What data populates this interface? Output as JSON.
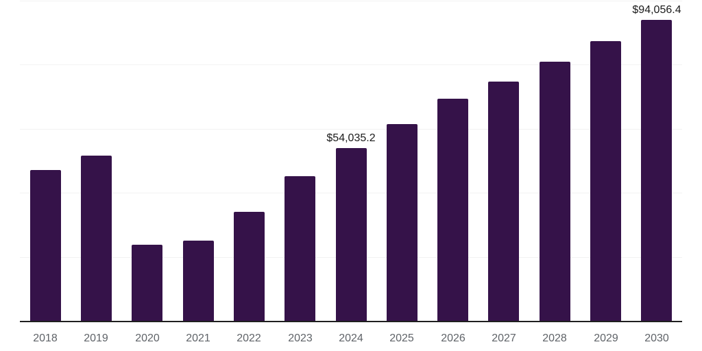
{
  "chart_data": {
    "type": "bar",
    "title": "",
    "xlabel": "",
    "ylabel": "",
    "categories": [
      "2018",
      "2019",
      "2020",
      "2021",
      "2022",
      "2023",
      "2024",
      "2025",
      "2026",
      "2027",
      "2028",
      "2029",
      "2030"
    ],
    "values": [
      47200,
      51500,
      23700,
      25000,
      34000,
      45100,
      54035.2,
      61400,
      69300,
      74800,
      81000,
      87400,
      94056.4
    ],
    "value_labels": [
      {
        "category": "2024",
        "text": "$54,035.2"
      },
      {
        "category": "2030",
        "text": "$94,056.4"
      }
    ],
    "ylim": [
      0,
      100000
    ],
    "grid_step": 20000,
    "grid": true,
    "legend": false,
    "colors": {
      "bar": "#351249",
      "gridline": "#f2f2f2",
      "axis_line": "#1f1f1f",
      "tick_label": "#5f6368",
      "data_label": "#1a1a1a",
      "background": "#ffffff"
    }
  }
}
